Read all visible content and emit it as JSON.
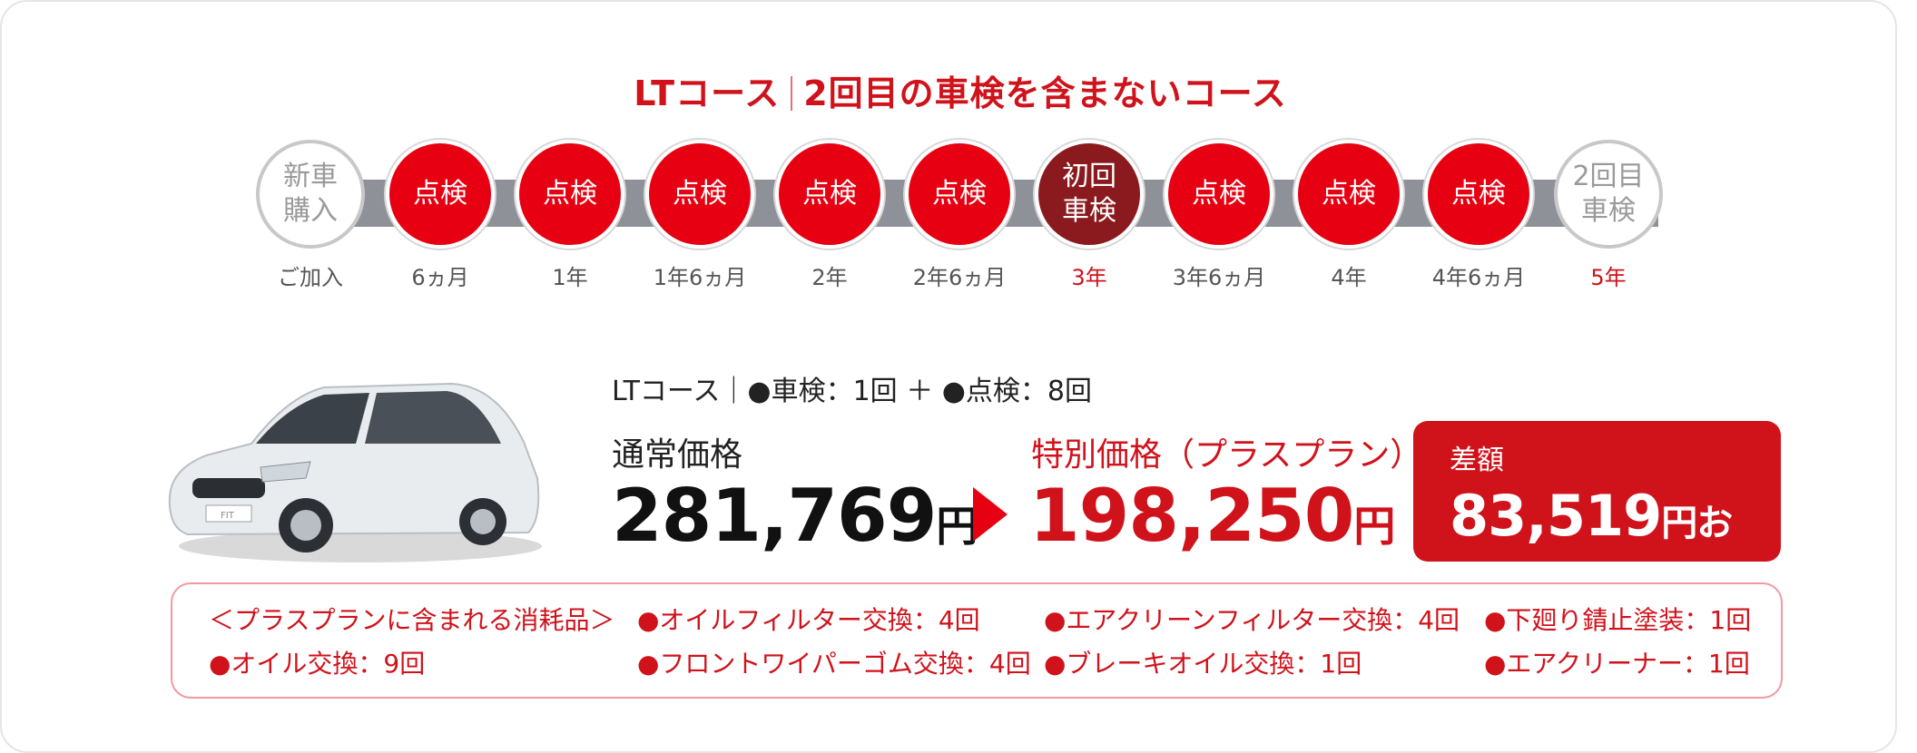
{
  "heading": {
    "left": "LTコース",
    "right": "2回目の車検を含まないコース"
  },
  "timeline": [
    {
      "text": "新車\n購入",
      "style": "white",
      "label": "ご加入",
      "highlight": false
    },
    {
      "text": "点検",
      "style": "red",
      "label": "6ヵ月",
      "highlight": false
    },
    {
      "text": "点検",
      "style": "red",
      "label": "1年",
      "highlight": false
    },
    {
      "text": "点検",
      "style": "red",
      "label": "1年6ヵ月",
      "highlight": false
    },
    {
      "text": "点検",
      "style": "red",
      "label": "2年",
      "highlight": false
    },
    {
      "text": "点検",
      "style": "red",
      "label": "2年6ヵ月",
      "highlight": false
    },
    {
      "text": "初回\n車検",
      "style": "dark",
      "label": "3年",
      "highlight": true
    },
    {
      "text": "点検",
      "style": "red",
      "label": "3年6ヵ月",
      "highlight": false
    },
    {
      "text": "点検",
      "style": "red",
      "label": "4年",
      "highlight": false
    },
    {
      "text": "点検",
      "style": "red",
      "label": "4年6ヵ月",
      "highlight": false
    },
    {
      "text": "2回目\n車検",
      "style": "white",
      "label": "5年",
      "highlight": true
    }
  ],
  "course_summary": "LTコース｜●車検：1回 ＋ ●点検：8回",
  "pricing": {
    "normal_label": "通常価格",
    "normal_value": "281,769",
    "special_label": "特別価格（プラスプラン）",
    "special_value": "198,250",
    "yen": "円",
    "diff_label": "差額",
    "diff_value": "83,519",
    "diff_suffix": "円お得！"
  },
  "consumables": {
    "title": "＜プラスプランに含まれる消耗品＞",
    "items": [
      "●オイル交換：9回",
      "●オイルフィルター交換：4回",
      "●フロントワイパーゴム交換：4回",
      "●エアクリーンフィルター交換：4回",
      "●ブレーキオイル交換：1回",
      "●下廻り錆止塗装：1回",
      "●エアクリーナー：1回"
    ]
  },
  "car_emblem": "FIT",
  "colors": {
    "accent": "#e60012",
    "dark_node": "#8a1a1e",
    "track": "#8e9198"
  }
}
